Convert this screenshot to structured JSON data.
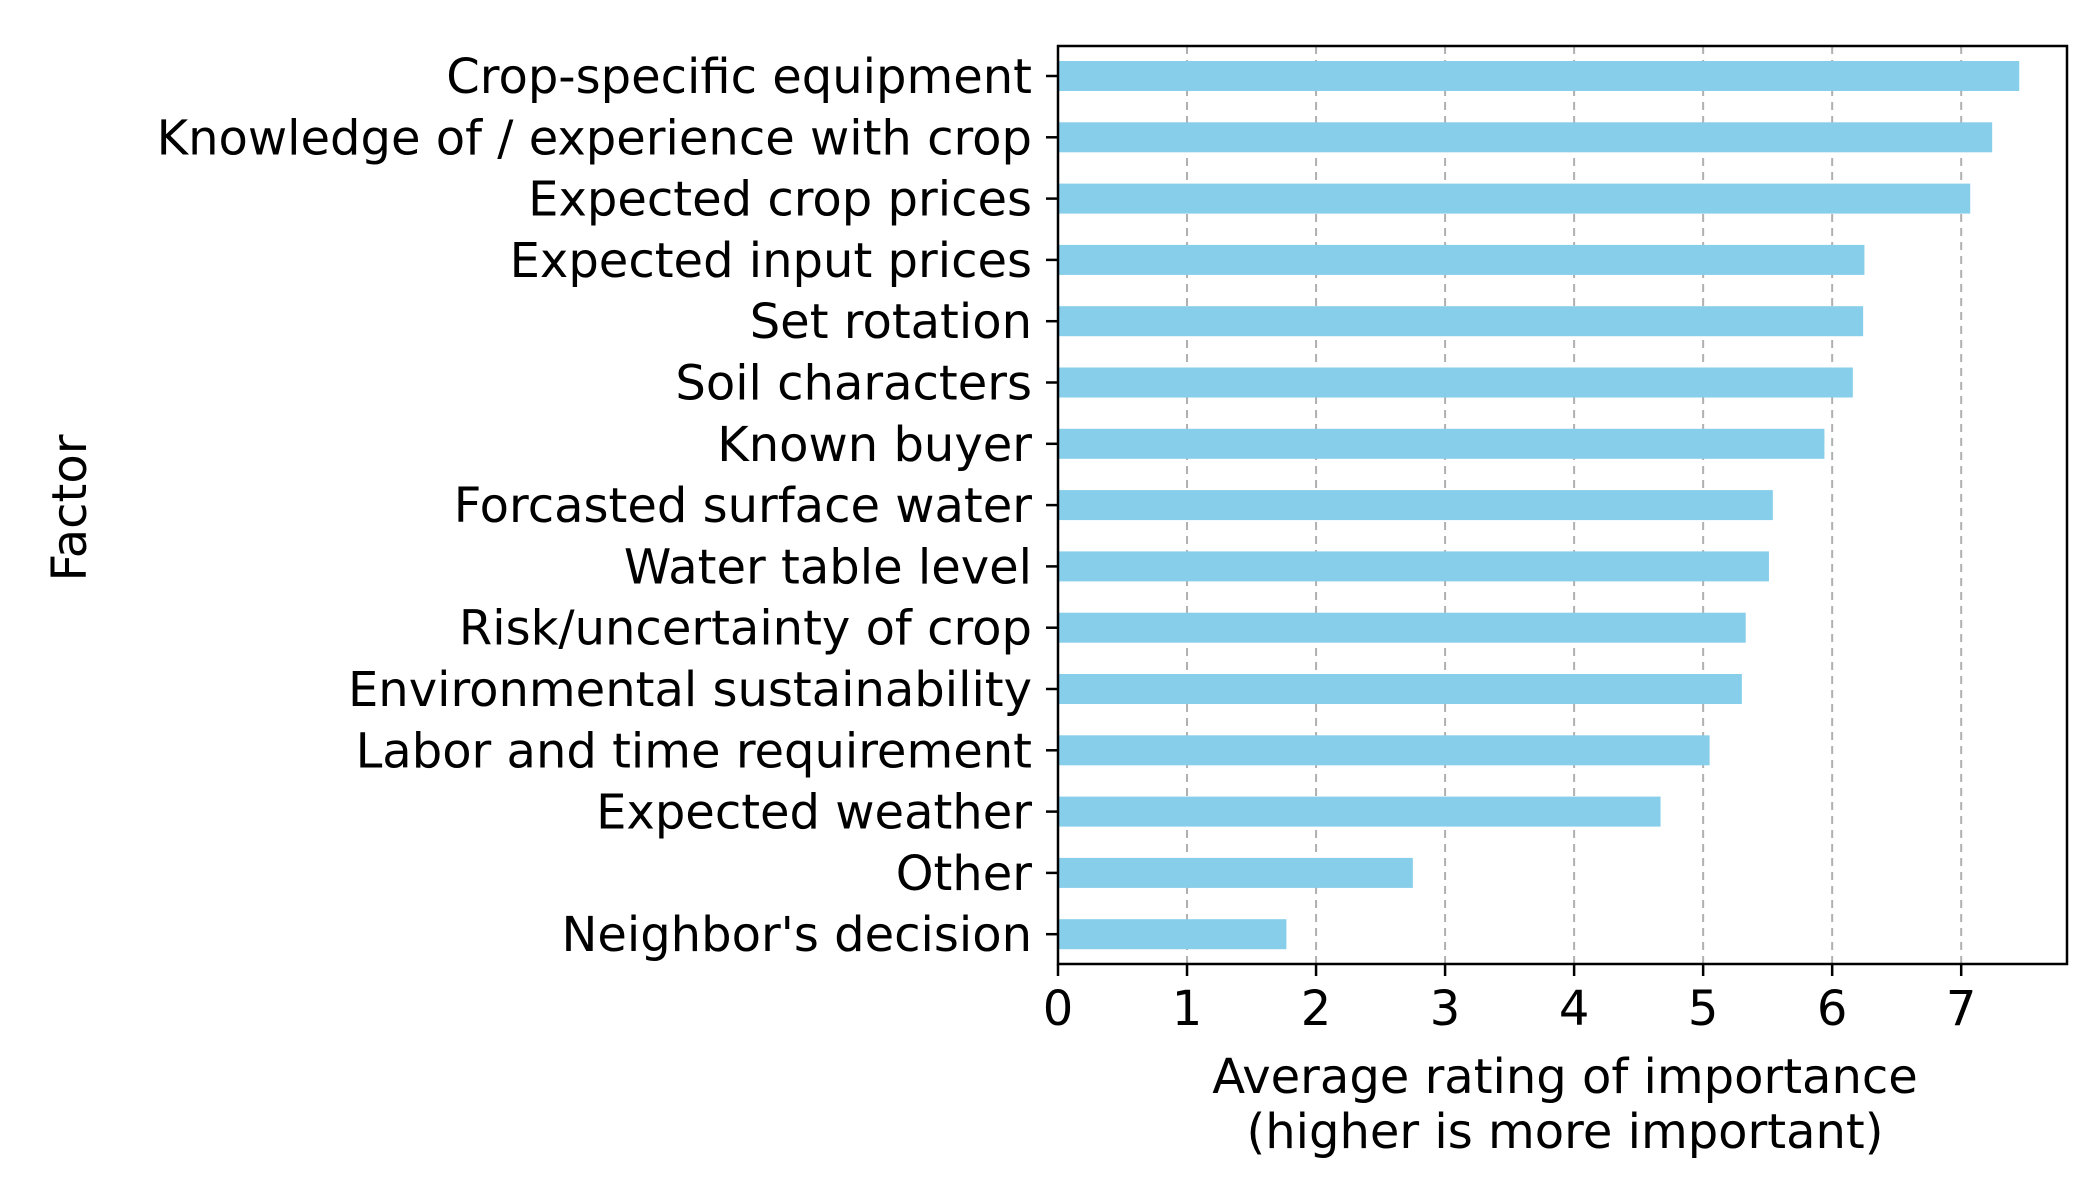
{
  "chart_data": {
    "type": "bar",
    "orientation": "horizontal",
    "categories": [
      "Crop-specific equipment",
      "Knowledge of / experience with crop",
      "Expected crop prices",
      "Expected input prices",
      "Set rotation",
      "Soil characters",
      "Known buyer",
      "Forcasted surface water",
      "Water table level",
      "Risk/uncertainty of crop",
      "Environmental sustainability",
      "Labor and time requirement",
      "Expected weather",
      "Other",
      "Neighbor's decision"
    ],
    "values": [
      7.45,
      7.24,
      7.07,
      6.25,
      6.24,
      6.16,
      5.94,
      5.54,
      5.51,
      5.33,
      5.3,
      5.05,
      4.67,
      2.75,
      1.77
    ],
    "xlabel_lines": [
      "Average rating of importance",
      "(higher is more important)"
    ],
    "ylabel": "Factor",
    "xlim": [
      0,
      7.82
    ],
    "xticks": [
      "0",
      "1",
      "2",
      "3",
      "4",
      "5",
      "6",
      "7"
    ],
    "grid": "vertical dashed",
    "legend": "none",
    "colors": {
      "bar": "#87ceeb",
      "grid": "#b0b0b0",
      "axis": "#000000"
    }
  }
}
